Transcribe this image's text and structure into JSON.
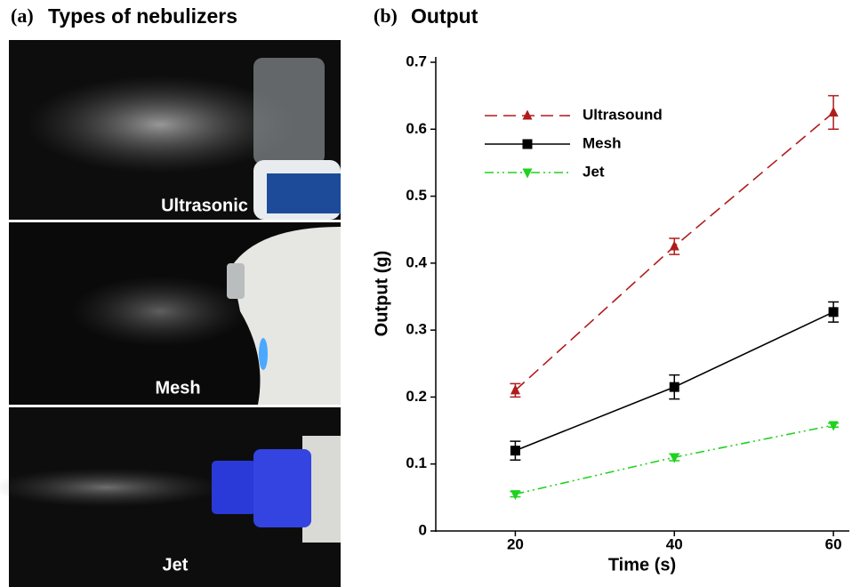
{
  "panel_a": {
    "panel_label": "(a)",
    "title": "Types of nebulizers",
    "images": [
      {
        "label": "Ultrasonic"
      },
      {
        "label": "Mesh"
      },
      {
        "label": "Jet"
      }
    ]
  },
  "chart_data": {
    "type": "line",
    "panel_label": "(b)",
    "title": "Output",
    "x_label": "Time (s)",
    "y_label": "Output (g)",
    "x": [
      20,
      40,
      60
    ],
    "series": [
      {
        "name": "Ultrasound",
        "color": "#b01c1c",
        "dash": "14,7",
        "marker": "triangle-up",
        "values": [
          0.21,
          0.425,
          0.625
        ],
        "errors": [
          0.01,
          0.012,
          0.025
        ]
      },
      {
        "name": "Mesh",
        "color": "#000000",
        "dash": "none",
        "marker": "square",
        "values": [
          0.12,
          0.215,
          0.327
        ],
        "errors": [
          0.014,
          0.018,
          0.015
        ]
      },
      {
        "name": "Jet",
        "color": "#1ed21e",
        "dash": "10,4,2,4,2,4",
        "marker": "triangle-down",
        "values": [
          0.055,
          0.11,
          0.158
        ],
        "errors": [
          0.004,
          0.005,
          0.003
        ]
      }
    ],
    "xlim": [
      10,
      62
    ],
    "ylim": [
      0,
      0.7
    ],
    "xticks": [
      20,
      40,
      60
    ],
    "yticks": [
      0,
      0.1,
      0.2,
      0.3,
      0.4,
      0.5,
      0.6,
      0.7
    ],
    "legend": "upper-left",
    "grid": false
  }
}
